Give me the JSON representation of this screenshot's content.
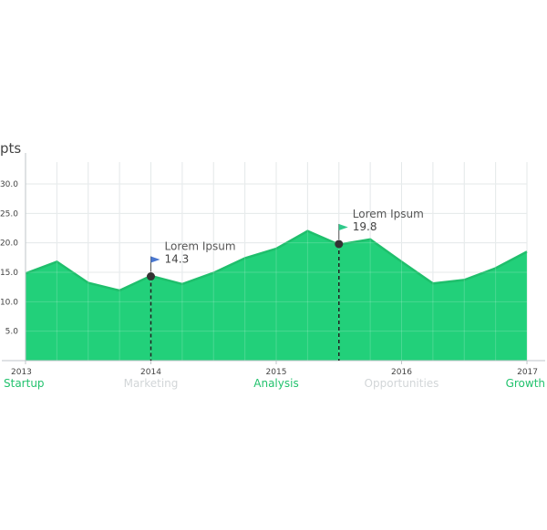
{
  "chart_data": {
    "type": "area",
    "ylabel": "pts",
    "ylim": [
      0,
      30
    ],
    "yticks": [
      "5.0",
      "10.0",
      "15.0",
      "20.0",
      "25.0",
      "30.0"
    ],
    "xlim": [
      2013,
      2017
    ],
    "year_ticks": [
      {
        "label": "2013",
        "x": 2013,
        "phase": "Startup",
        "phase_highlight": true
      },
      {
        "label": "2014",
        "x": 2014,
        "phase": "Marketing",
        "phase_highlight": false
      },
      {
        "label": "2015",
        "x": 2015,
        "phase": "Analysis",
        "phase_highlight": true
      },
      {
        "label": "2016",
        "x": 2016,
        "phase": "Opportunities",
        "phase_highlight": false
      },
      {
        "label": "2017",
        "x": 2017,
        "phase": "Growth",
        "phase_highlight": true
      }
    ],
    "x": [
      2013,
      2013.25,
      2013.5,
      2013.75,
      2014,
      2014.25,
      2014.5,
      2014.75,
      2015,
      2015.25,
      2015.5,
      2015.75,
      2016,
      2016.25,
      2016.5,
      2016.75,
      2017
    ],
    "values": [
      14.8,
      16.8,
      13.2,
      11.9,
      14.4,
      13.0,
      14.9,
      17.4,
      19.0,
      22.0,
      19.7,
      20.6,
      16.8,
      13.1,
      13.7,
      15.7,
      18.5
    ],
    "grid": true,
    "annotations": [
      {
        "label": "Lorem Ipsum",
        "value": "14.3",
        "x": 2014,
        "y": 14.3,
        "flag_color": "#4a78d0"
      },
      {
        "label": "Lorem Ipsum",
        "value": "19.8",
        "x": 2015.5,
        "y": 19.8,
        "flag_color": "#2ec98a"
      }
    ]
  },
  "colors": {
    "area_fill": "#22d07a",
    "area_line": "#1fbf6c",
    "grid": "#dfe4e6",
    "phase_highlight": "#22c26d",
    "phase_muted": "#d2d6d8",
    "marker": "#333333"
  }
}
